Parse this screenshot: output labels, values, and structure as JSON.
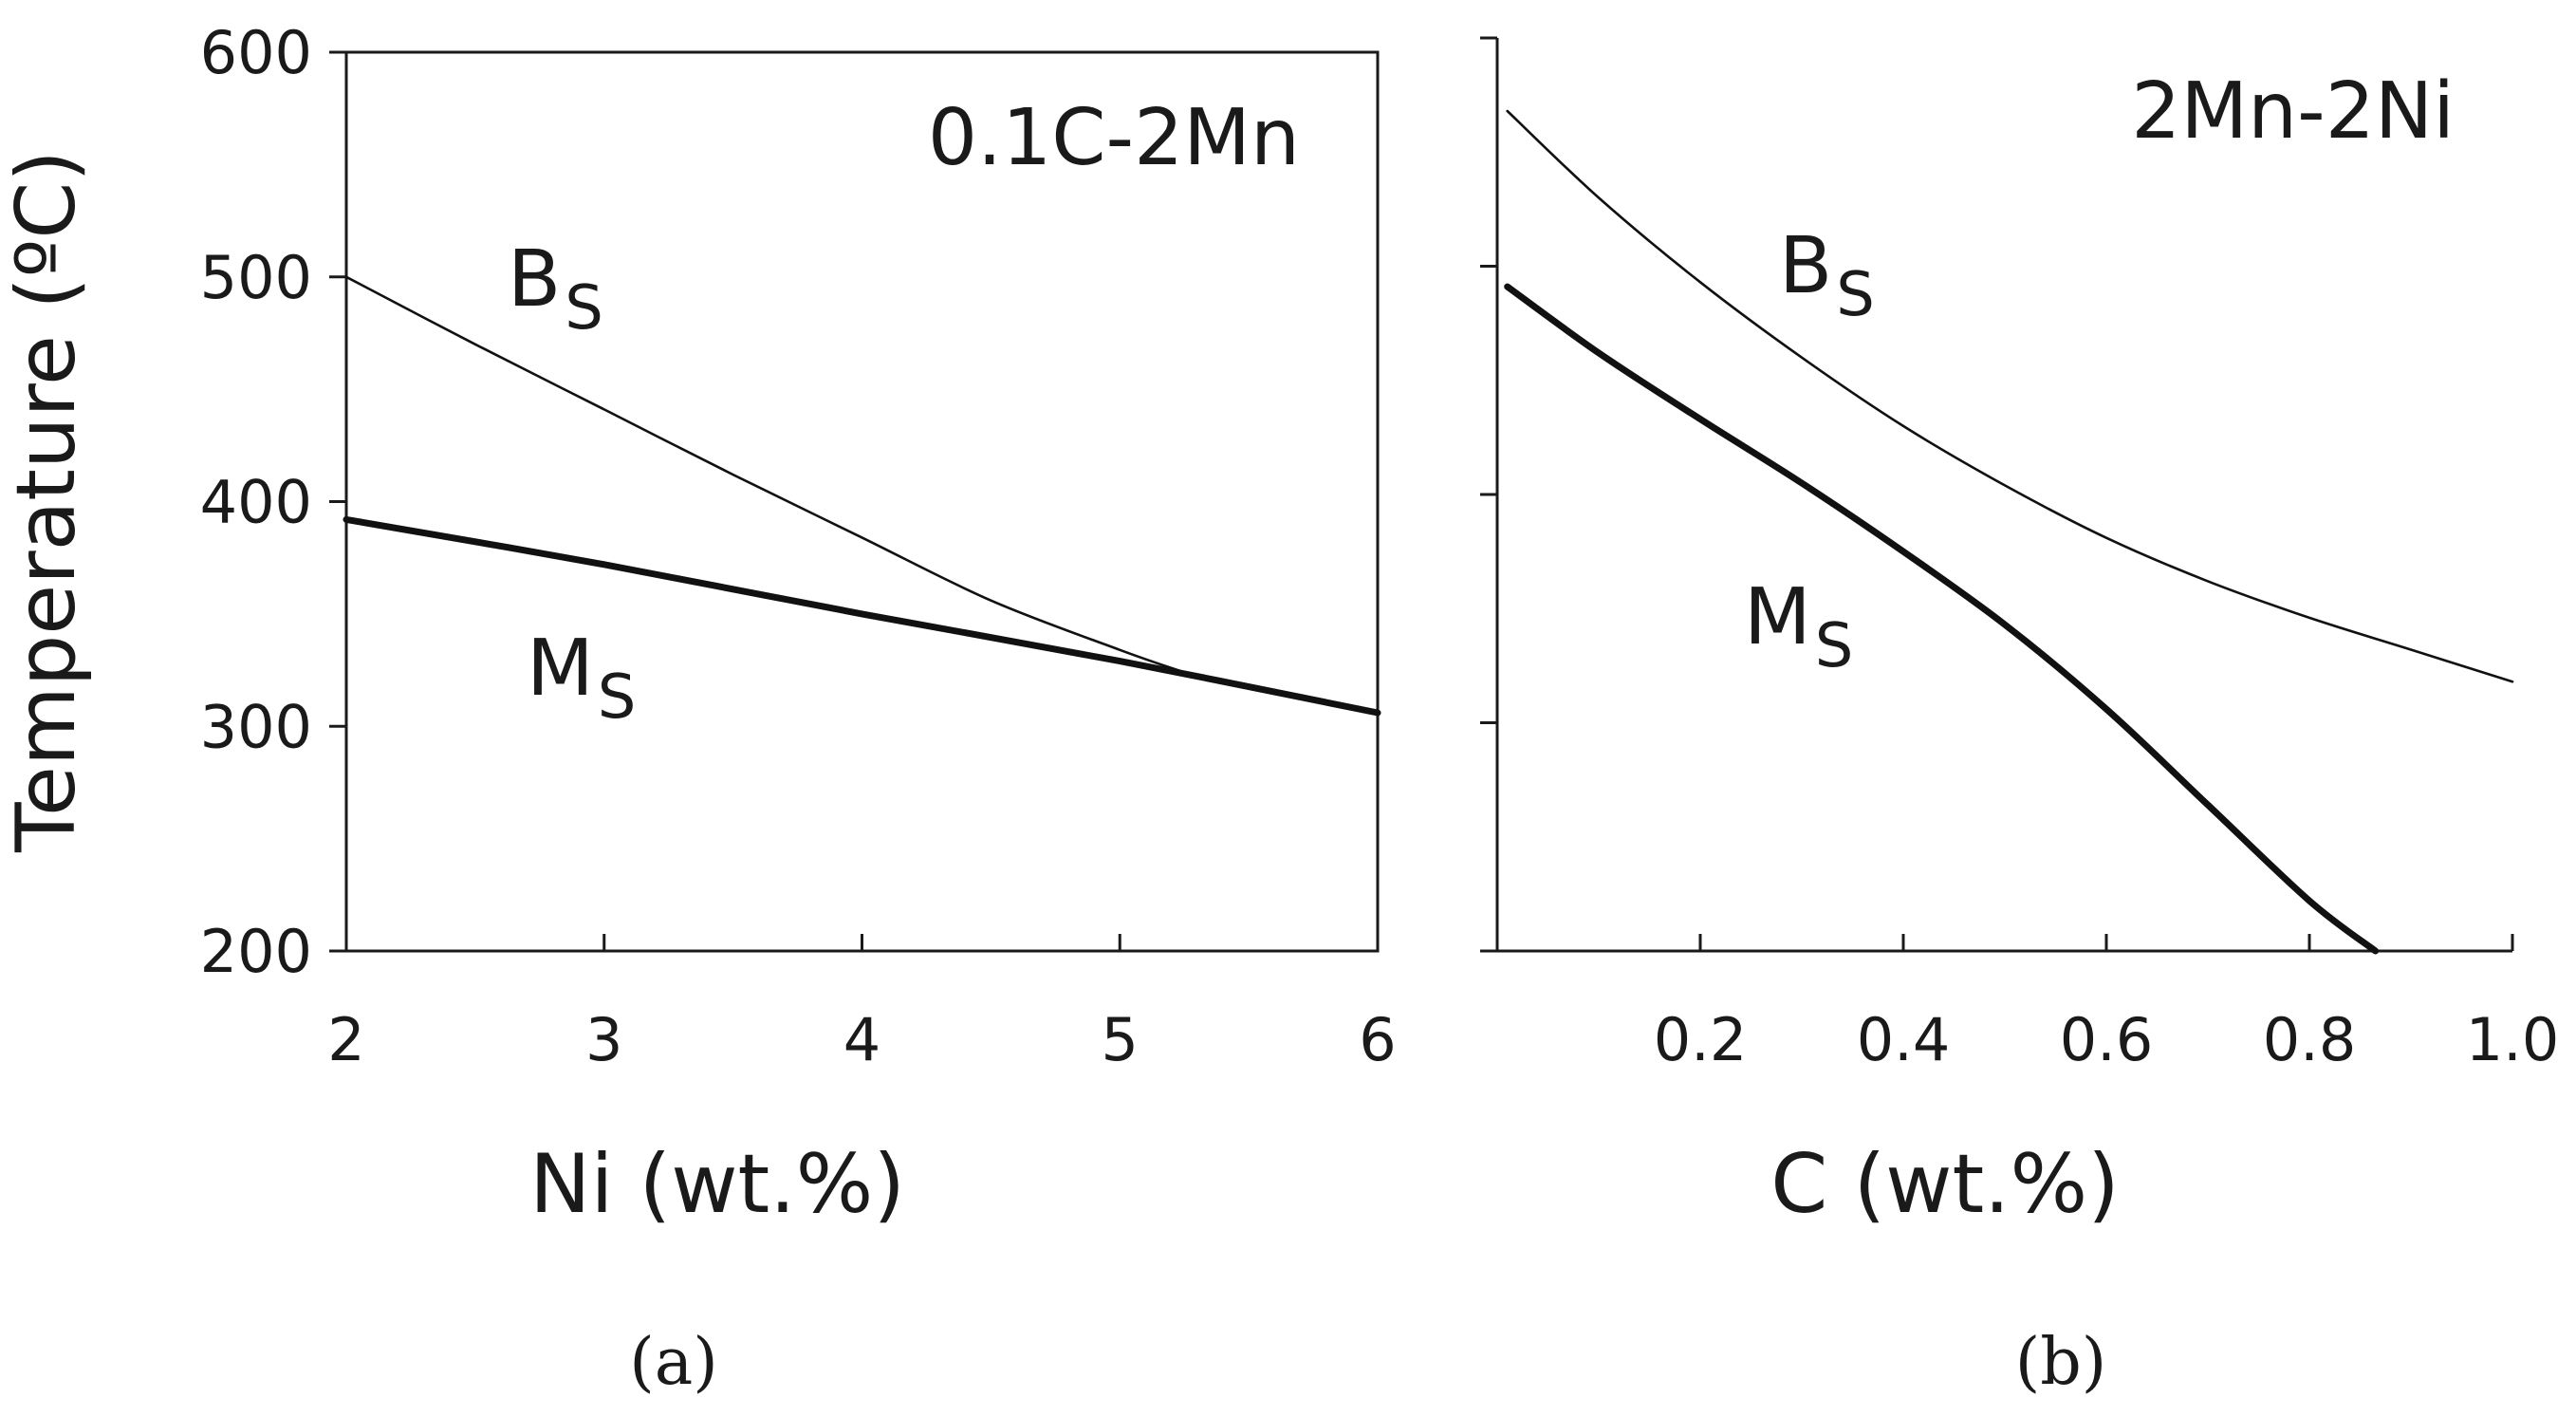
{
  "chart_data": [
    {
      "panel_label": "(a)",
      "type": "line",
      "annotation": "0.1C-2Mn",
      "xlabel": "Ni (wt.%)",
      "ylabel": "Temperature (ºC)",
      "xlim": [
        2,
        6
      ],
      "ylim": [
        200,
        600
      ],
      "xticks": [
        2,
        3,
        4,
        5,
        6
      ],
      "xtick_labels": [
        "2",
        "3",
        "4",
        "5",
        "6"
      ],
      "yticks": [
        200,
        300,
        400,
        500,
        600
      ],
      "ytick_labels": [
        "200",
        "300",
        "400",
        "500",
        "600"
      ],
      "grid": false,
      "series": [
        {
          "name": "Bs",
          "label_main": "B",
          "label_sub": "S",
          "line": "thin",
          "x": [
            2.0,
            2.5,
            3.0,
            3.5,
            4.0,
            4.5,
            5.0,
            5.25
          ],
          "y": [
            500,
            470,
            441,
            412,
            384,
            356,
            334,
            324
          ]
        },
        {
          "name": "Ms",
          "label_main": "M",
          "label_sub": "S",
          "line": "thick",
          "x": [
            2.0,
            3.0,
            4.0,
            5.0,
            6.0
          ],
          "y": [
            392,
            372,
            350,
            329,
            306
          ]
        }
      ]
    },
    {
      "panel_label": "(b)",
      "type": "line",
      "annotation": "2Mn-2Ni",
      "xlabel": "C (wt.%)",
      "ylabel": "",
      "xlim": [
        0,
        1.0
      ],
      "ylim": [
        200,
        600
      ],
      "xticks": [
        0.2,
        0.4,
        0.6,
        0.8,
        1.0
      ],
      "xtick_labels": [
        "0.2",
        "0.4",
        "0.6",
        "0.8",
        "1.0"
      ],
      "yticks": [
        200,
        300,
        400,
        500,
        600
      ],
      "ytick_labels": [],
      "grid": false,
      "series": [
        {
          "name": "Bs",
          "label_main": "B",
          "label_sub": "S",
          "line": "thin",
          "x": [
            0.01,
            0.1,
            0.2,
            0.3,
            0.4,
            0.5,
            0.6,
            0.7,
            0.8,
            0.9,
            1.0
          ],
          "y": [
            568,
            530,
            493,
            460,
            430,
            404,
            381,
            362,
            346,
            332,
            318
          ]
        },
        {
          "name": "Ms",
          "label_main": "M",
          "label_sub": "S",
          "line": "thick",
          "x": [
            0.01,
            0.1,
            0.2,
            0.3,
            0.4,
            0.5,
            0.6,
            0.7,
            0.8,
            0.865
          ],
          "y": [
            491,
            462,
            433,
            405,
            375,
            343,
            306,
            264,
            222,
            200
          ]
        }
      ]
    }
  ]
}
